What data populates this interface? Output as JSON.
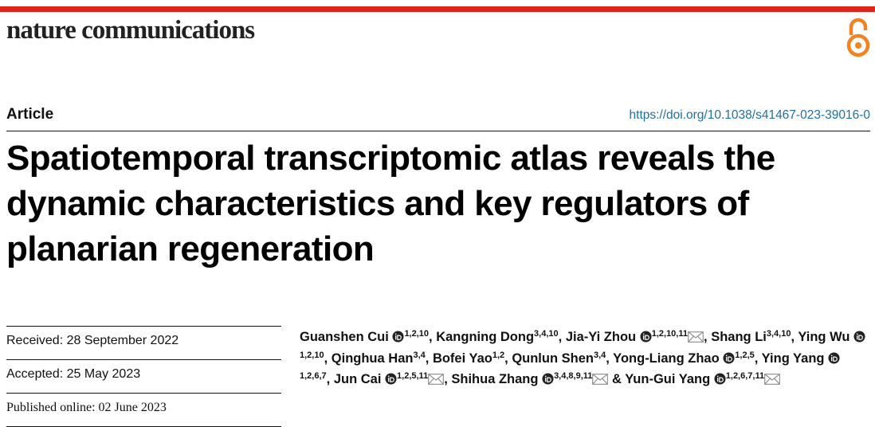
{
  "header": {
    "journal": "nature communications",
    "article_type": "Article",
    "doi": "https://doi.org/10.1038/s41467-023-39016-0"
  },
  "title": "Spatiotemporal transcriptomic atlas reveals the dynamic characteristics and key regulators of planarian regeneration",
  "dates": [
    "Received: 28 September 2022",
    "Accepted: 25 May 2023",
    "Published online: 02 June 2023"
  ],
  "authors": {
    "separator": ",",
    "last_separator": "&",
    "list": [
      {
        "name": "Guanshen Cui",
        "affiliations": "1,2,10",
        "orcid": true,
        "corresponding": false
      },
      {
        "name": "Kangning Dong",
        "affiliations": "3,4,10",
        "orcid": false,
        "corresponding": false
      },
      {
        "name": "Jia-Yi Zhou",
        "affiliations": "1,2,10,11",
        "orcid": true,
        "corresponding": true
      },
      {
        "name": "Shang Li",
        "affiliations": "3,4,10",
        "orcid": false,
        "corresponding": false
      },
      {
        "name": "Ying Wu",
        "affiliations": "1,2,10",
        "orcid": true,
        "corresponding": false
      },
      {
        "name": "Qinghua Han",
        "affiliations": "3,4",
        "orcid": false,
        "corresponding": false
      },
      {
        "name": "Bofei Yao",
        "affiliations": "1,2",
        "orcid": false,
        "corresponding": false
      },
      {
        "name": "Qunlun Shen",
        "affiliations": "3,4",
        "orcid": false,
        "corresponding": false
      },
      {
        "name": "Yong-Liang Zhao",
        "affiliations": "1,2,5",
        "orcid": true,
        "corresponding": false
      },
      {
        "name": "Ying Yang",
        "affiliations": "1,2,6,7",
        "orcid": true,
        "corresponding": false
      },
      {
        "name": "Jun Cai",
        "affiliations": "1,2,5,11",
        "orcid": true,
        "corresponding": true
      },
      {
        "name": "Shihua Zhang",
        "affiliations": "3,4,8,9,11",
        "orcid": true,
        "corresponding": true
      },
      {
        "name": "Yun-Gui Yang",
        "affiliations": "1,2,6,7,11",
        "orcid": true,
        "corresponding": true
      }
    ]
  }
}
